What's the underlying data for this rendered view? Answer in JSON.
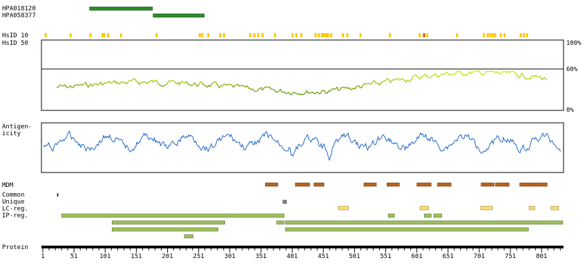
{
  "antibodies": {
    "label1": "HPA018120",
    "label2": "HPA058377",
    "color": "#2e8b2e",
    "spans": [
      [
        76,
        177
      ],
      [
        178,
        260
      ]
    ]
  },
  "hsid": {
    "label10": "HsID 10",
    "label50": "HsID 50",
    "pct100": "100%",
    "pct60": "60%",
    "pct0": "0%",
    "tick_color": "#ffc800",
    "hot_color": "#e05000",
    "positions": [
      5,
      45,
      77,
      96,
      99,
      105,
      126,
      183,
      252,
      256,
      266,
      285,
      291,
      333,
      340,
      346,
      353,
      373,
      401,
      407,
      415,
      438,
      443,
      448,
      450,
      453,
      455,
      458,
      463,
      482,
      489,
      510,
      557,
      605,
      612,
      617,
      665,
      708,
      714,
      718,
      722,
      726,
      735,
      741,
      767,
      772,
      777
    ],
    "hot": [
      612
    ]
  },
  "antigenicity": {
    "label": "Antigen-\nicity",
    "color": "#1e64c8"
  },
  "features": {
    "labels": [
      "MDM",
      "Common",
      "Unique",
      "LC-reg.",
      "IP-reg."
    ],
    "mdm_color": "#b8641e",
    "lc_color": "#ffe070",
    "ip_color": "#a0c060",
    "unique_color": "#808080",
    "common_color": "#000000"
  },
  "protein": {
    "label": "Protein",
    "ticks": [
      "1",
      "51",
      "101",
      "151",
      "201",
      "251",
      "301",
      "351",
      "401",
      "451",
      "501",
      "551",
      "601",
      "651",
      "701",
      "751",
      "801"
    ]
  }
}
